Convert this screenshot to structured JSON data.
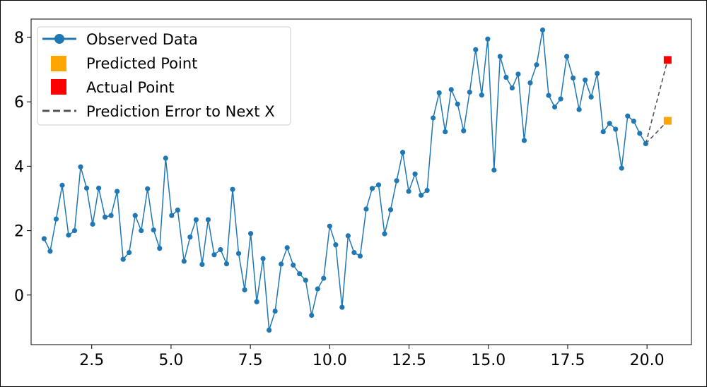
{
  "chart_data": {
    "type": "line",
    "xlim": [
      0.59,
      21.4
    ],
    "ylim": [
      -1.54,
      8.57
    ],
    "x_ticks": [
      2.5,
      5.0,
      7.5,
      10.0,
      12.5,
      15.0,
      17.5,
      20.0
    ],
    "x_tick_labels": [
      "2.5",
      "5.0",
      "7.5",
      "10.0",
      "12.5",
      "15.0",
      "17.5",
      "20.0"
    ],
    "y_ticks": [
      0,
      2,
      4,
      6,
      8
    ],
    "y_tick_labels": [
      "0",
      "2",
      "4",
      "6",
      "8"
    ],
    "grid": false,
    "legend_position": "upper-left",
    "series": [
      {
        "name": "Observed Data",
        "color": "#1f77b4",
        "marker": "circle",
        "x": [
          1.0,
          1.19,
          1.38,
          1.57,
          1.77,
          1.96,
          2.15,
          2.34,
          2.53,
          2.72,
          2.92,
          3.11,
          3.3,
          3.49,
          3.68,
          3.87,
          4.06,
          4.26,
          4.45,
          4.64,
          4.83,
          5.02,
          5.21,
          5.41,
          5.6,
          5.79,
          5.98,
          6.17,
          6.36,
          6.56,
          6.75,
          6.94,
          7.13,
          7.32,
          7.51,
          7.7,
          7.9,
          8.09,
          8.28,
          8.47,
          8.66,
          8.85,
          9.05,
          9.24,
          9.43,
          9.62,
          9.81,
          10.0,
          10.19,
          10.39,
          10.58,
          10.77,
          10.96,
          11.15,
          11.34,
          11.54,
          11.73,
          11.92,
          12.11,
          12.3,
          12.49,
          12.69,
          12.88,
          13.07,
          13.26,
          13.45,
          13.64,
          13.83,
          14.03,
          14.22,
          14.41,
          14.6,
          14.79,
          14.98,
          15.18,
          15.37,
          15.56,
          15.75,
          15.94,
          16.13,
          16.32,
          16.52,
          16.71,
          16.9,
          17.09,
          17.28,
          17.47,
          17.67,
          17.86,
          18.05,
          18.24,
          18.43,
          18.62,
          18.82,
          19.01,
          19.2,
          19.39,
          19.58,
          19.77,
          19.96
        ],
        "y": [
          1.75,
          1.36,
          2.36,
          3.41,
          1.86,
          2.0,
          3.98,
          3.32,
          2.2,
          3.32,
          2.42,
          2.47,
          3.22,
          1.11,
          1.32,
          2.47,
          2.0,
          3.3,
          2.02,
          1.45,
          4.25,
          2.47,
          2.64,
          1.05,
          1.8,
          2.34,
          0.95,
          2.34,
          1.25,
          1.41,
          0.97,
          3.28,
          1.29,
          0.16,
          1.91,
          -0.21,
          1.13,
          -1.09,
          -0.5,
          0.96,
          1.47,
          0.93,
          0.66,
          0.46,
          -0.63,
          0.19,
          0.52,
          2.14,
          1.56,
          -0.38,
          1.84,
          1.32,
          1.21,
          2.67,
          3.31,
          3.42,
          1.9,
          2.65,
          3.55,
          4.43,
          3.22,
          3.76,
          3.1,
          3.25,
          5.5,
          6.28,
          5.07,
          6.38,
          5.93,
          5.1,
          6.3,
          7.62,
          6.21,
          7.95,
          3.88,
          7.41,
          6.76,
          6.43,
          6.86,
          4.8,
          6.59,
          7.15,
          8.23,
          6.2,
          5.84,
          6.09,
          7.41,
          6.74,
          5.76,
          6.68,
          6.15,
          6.88,
          5.07,
          5.33,
          5.15,
          3.94,
          5.56,
          5.4,
          5.02,
          4.7
        ]
      }
    ],
    "predicted_point": {
      "name": "Predicted Point",
      "x": 20.65,
      "y": 5.41,
      "color": "#ffa500"
    },
    "actual_point": {
      "name": "Actual Point",
      "x": 20.65,
      "y": 7.3,
      "color": "#ff0000"
    },
    "error_line": {
      "name": "Prediction Error to Next X",
      "color": "#555555"
    }
  }
}
